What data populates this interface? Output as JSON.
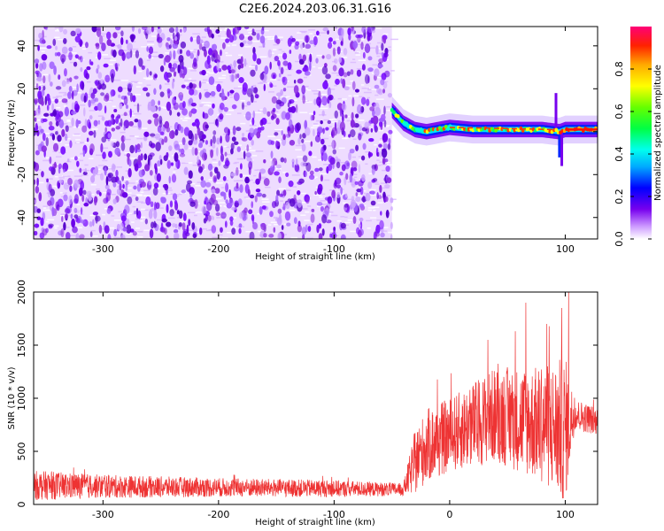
{
  "title": "C2E6.2024.203.06.31.G16",
  "chart_data": [
    {
      "type": "heatmap",
      "xlabel": "Height of straight line (km)",
      "ylabel": "Frequency (Hz)",
      "xlim": [
        -360,
        128
      ],
      "ylim": [
        -50,
        49
      ],
      "x_ticks": [
        -300,
        -200,
        -100,
        0,
        100
      ],
      "y_ticks": [
        -40,
        -20,
        0,
        20,
        40
      ],
      "x_tick_labels": [
        "-300",
        "-200",
        "-100",
        "0",
        "100"
      ],
      "y_tick_labels": [
        "-40",
        "-20",
        "0",
        "20",
        "40"
      ],
      "noise_region_x": [
        -360,
        -50
      ],
      "signal_track": [
        {
          "x": -50,
          "y": 10
        },
        {
          "x": -45,
          "y": 7
        },
        {
          "x": -40,
          "y": 4
        },
        {
          "x": -30,
          "y": 1
        },
        {
          "x": -20,
          "y": 0
        },
        {
          "x": -10,
          "y": 1
        },
        {
          "x": 0,
          "y": 2
        },
        {
          "x": 20,
          "y": 1
        },
        {
          "x": 40,
          "y": 1
        },
        {
          "x": 60,
          "y": 1
        },
        {
          "x": 80,
          "y": 1
        },
        {
          "x": 95,
          "y": 0
        },
        {
          "x": 100,
          "y": 1
        },
        {
          "x": 128,
          "y": 1
        }
      ],
      "colorbar": {
        "label": "Normalized spectral amplitude",
        "range": [
          0,
          1
        ],
        "ticks": [
          0.0,
          0.2,
          0.4,
          0.6,
          0.8
        ],
        "tick_labels": [
          "0.0",
          "0.2",
          "0.4",
          "0.6",
          "0.8"
        ]
      },
      "grid": false
    },
    {
      "type": "line",
      "xlabel": "Height of straight line (km)",
      "ylabel": "SNR (10 * v/v)",
      "xlim": [
        -360,
        128
      ],
      "ylim": [
        0,
        2000
      ],
      "x_ticks": [
        -300,
        -200,
        -100,
        0,
        100
      ],
      "y_ticks": [
        0,
        500,
        1000,
        1500,
        2000
      ],
      "x_tick_labels": [
        "-300",
        "-200",
        "-100",
        "0",
        "100"
      ],
      "y_tick_labels": [
        "0",
        "500",
        "1000",
        "1500",
        "2000"
      ],
      "series_color": "#ee3333",
      "envelope": [
        {
          "x": -360,
          "mean": 180,
          "spread": 140
        },
        {
          "x": -300,
          "mean": 170,
          "spread": 110
        },
        {
          "x": -200,
          "mean": 160,
          "spread": 90
        },
        {
          "x": -100,
          "mean": 150,
          "spread": 80
        },
        {
          "x": -40,
          "mean": 140,
          "spread": 60
        },
        {
          "x": -30,
          "mean": 400,
          "spread": 300
        },
        {
          "x": -20,
          "mean": 550,
          "spread": 350
        },
        {
          "x": 0,
          "mean": 650,
          "spread": 350
        },
        {
          "x": 20,
          "mean": 750,
          "spread": 400
        },
        {
          "x": 40,
          "mean": 850,
          "spread": 450
        },
        {
          "x": 60,
          "mean": 800,
          "spread": 500
        },
        {
          "x": 80,
          "mean": 750,
          "spread": 550
        },
        {
          "x": 100,
          "mean": 700,
          "spread": 700
        },
        {
          "x": 108,
          "mean": 850,
          "spread": 150
        },
        {
          "x": 128,
          "mean": 780,
          "spread": 130
        }
      ],
      "peaks": [
        {
          "x": 33,
          "y": 1550
        },
        {
          "x": 66,
          "y": 1900
        },
        {
          "x": 84,
          "y": 1700
        },
        {
          "x": 97,
          "y": 1850
        },
        {
          "x": 103,
          "y": 2000
        }
      ],
      "grid": false
    }
  ]
}
